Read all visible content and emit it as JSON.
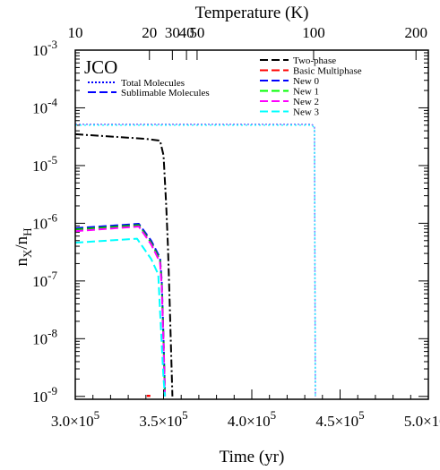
{
  "chart_data": {
    "type": "line",
    "panel_label": "JCO",
    "xlabel": "Time (yr)",
    "ylabel_main": "n",
    "ylabel_sub1": "X",
    "ylabel_mid": "/n",
    "ylabel_sub2": "H",
    "top_axis_label": "Temperature (K)",
    "xlim": [
      300000,
      500000
    ],
    "ylim_log10": [
      -9.05,
      -3
    ],
    "x_ticks": [
      {
        "value": 300000,
        "mant": "3.0",
        "exp": "5"
      },
      {
        "value": 350000,
        "mant": "3.5",
        "exp": "5"
      },
      {
        "value": 400000,
        "mant": "4.0",
        "exp": "5"
      },
      {
        "value": 450000,
        "mant": "4.5",
        "exp": "5"
      },
      {
        "value": 500000,
        "mant": "5.0",
        "exp": "5"
      }
    ],
    "y_ticks": [
      {
        "exp": -9,
        "label_base": "10",
        "label_exp": "-9"
      },
      {
        "exp": -8,
        "label_base": "10",
        "label_exp": "-8"
      },
      {
        "exp": -7,
        "label_base": "10",
        "label_exp": "-7"
      },
      {
        "exp": -6,
        "label_base": "10",
        "label_exp": "-6"
      },
      {
        "exp": -5,
        "label_base": "10",
        "label_exp": "-5"
      },
      {
        "exp": -4,
        "label_base": "10",
        "label_exp": "-4"
      },
      {
        "exp": -3,
        "label_base": "10",
        "label_exp": "-3"
      }
    ],
    "top_ticks": [
      {
        "label": "10",
        "time": 300000
      },
      {
        "label": "20",
        "time": 342000
      },
      {
        "label": "30",
        "time": 355000
      },
      {
        "label": "40",
        "time": 363000
      },
      {
        "label": "50",
        "time": 369000
      },
      {
        "label": "100",
        "time": 435000
      },
      {
        "label": "200",
        "time": 493000
      }
    ],
    "legend_left": [
      {
        "name": "Total Molecules",
        "color": "#0000ff",
        "dash": "2,2"
      },
      {
        "name": "Sublimable Molecules",
        "color": "#0000ff",
        "dash": "9,4"
      }
    ],
    "legend_right": [
      {
        "name": "Two-phase",
        "color": "#000000",
        "dash": "9,4"
      },
      {
        "name": "Basic Multiphase",
        "color": "#ff0000",
        "dash": "9,4"
      },
      {
        "name": "New 0",
        "color": "#0000ff",
        "dash": "9,4"
      },
      {
        "name": "New 1",
        "color": "#00ff00",
        "dash": "9,4"
      },
      {
        "name": "New 2",
        "color": "#ff00ff",
        "dash": "9,4"
      },
      {
        "name": "New 3",
        "color": "#00ffff",
        "dash": "9,4"
      }
    ],
    "series": [
      {
        "key": "total",
        "color": "#8080ff",
        "dash": "2,2",
        "width": 1.6,
        "points": [
          [
            300000,
            5.2e-05
          ],
          [
            434000,
            5.2e-05
          ],
          [
            435500,
            4.6e-05
          ],
          [
            436000,
            1e-09
          ]
        ]
      },
      {
        "key": "total_cyan",
        "color": "#00ffff",
        "dash": "2,3",
        "width": 1.2,
        "points": [
          [
            300000,
            5e-05
          ],
          [
            434000,
            5e-05
          ],
          [
            435500,
            4.5e-05
          ],
          [
            436000,
            1e-09
          ]
        ]
      },
      {
        "key": "two_phase",
        "color": "#000000",
        "dash": "9,3,2,3",
        "width": 2,
        "points": [
          [
            300000,
            3.5e-05
          ],
          [
            340000,
            2.9e-05
          ],
          [
            348000,
            2.7e-05
          ],
          [
            350000,
            1.5e-05
          ],
          [
            351500,
            2e-06
          ],
          [
            352500,
            4e-07
          ],
          [
            353500,
            4e-08
          ],
          [
            355000,
            1e-09
          ]
        ]
      },
      {
        "key": "new0",
        "color": "#0000ff",
        "dash": "9,4",
        "width": 2,
        "points": [
          [
            300000,
            8.2e-07
          ],
          [
            336000,
            9.8e-07
          ],
          [
            343000,
            5e-07
          ],
          [
            348000,
            2.5e-07
          ],
          [
            349000,
            1e-07
          ],
          [
            350000,
            1e-08
          ],
          [
            350800,
            1e-09
          ]
        ]
      },
      {
        "key": "new1",
        "color": "#00c000",
        "dash": "9,4",
        "width": 2,
        "points": [
          [
            300000,
            7.8e-07
          ],
          [
            336000,
            9.3e-07
          ],
          [
            343000,
            4.6e-07
          ],
          [
            348000,
            2.3e-07
          ],
          [
            349000,
            9e-08
          ],
          [
            350000,
            9e-09
          ],
          [
            350800,
            1e-09
          ]
        ]
      },
      {
        "key": "new2",
        "color": "#ff00ff",
        "dash": "9,4",
        "width": 2,
        "points": [
          [
            300000,
            7.3e-07
          ],
          [
            336000,
            8.8e-07
          ],
          [
            343000,
            4.3e-07
          ],
          [
            348000,
            2.1e-07
          ],
          [
            349000,
            8e-08
          ],
          [
            350000,
            8e-09
          ],
          [
            350800,
            1e-09
          ]
        ]
      },
      {
        "key": "new3",
        "color": "#00ffff",
        "dash": "9,4",
        "width": 2,
        "points": [
          [
            300000,
            4.6e-07
          ],
          [
            335000,
            5.4e-07
          ],
          [
            343000,
            2.4e-07
          ],
          [
            347000,
            1.3e-07
          ],
          [
            348000,
            3e-08
          ],
          [
            349000,
            8e-09
          ],
          [
            350000,
            2e-09
          ],
          [
            350800,
            1e-09
          ]
        ]
      },
      {
        "key": "basic_multiphase",
        "color": "#ff0000",
        "dash": "4,2",
        "width": 2.4,
        "points": [
          [
            340500,
            1.02e-09
          ],
          [
            343000,
            1.02e-09
          ]
        ]
      }
    ]
  }
}
